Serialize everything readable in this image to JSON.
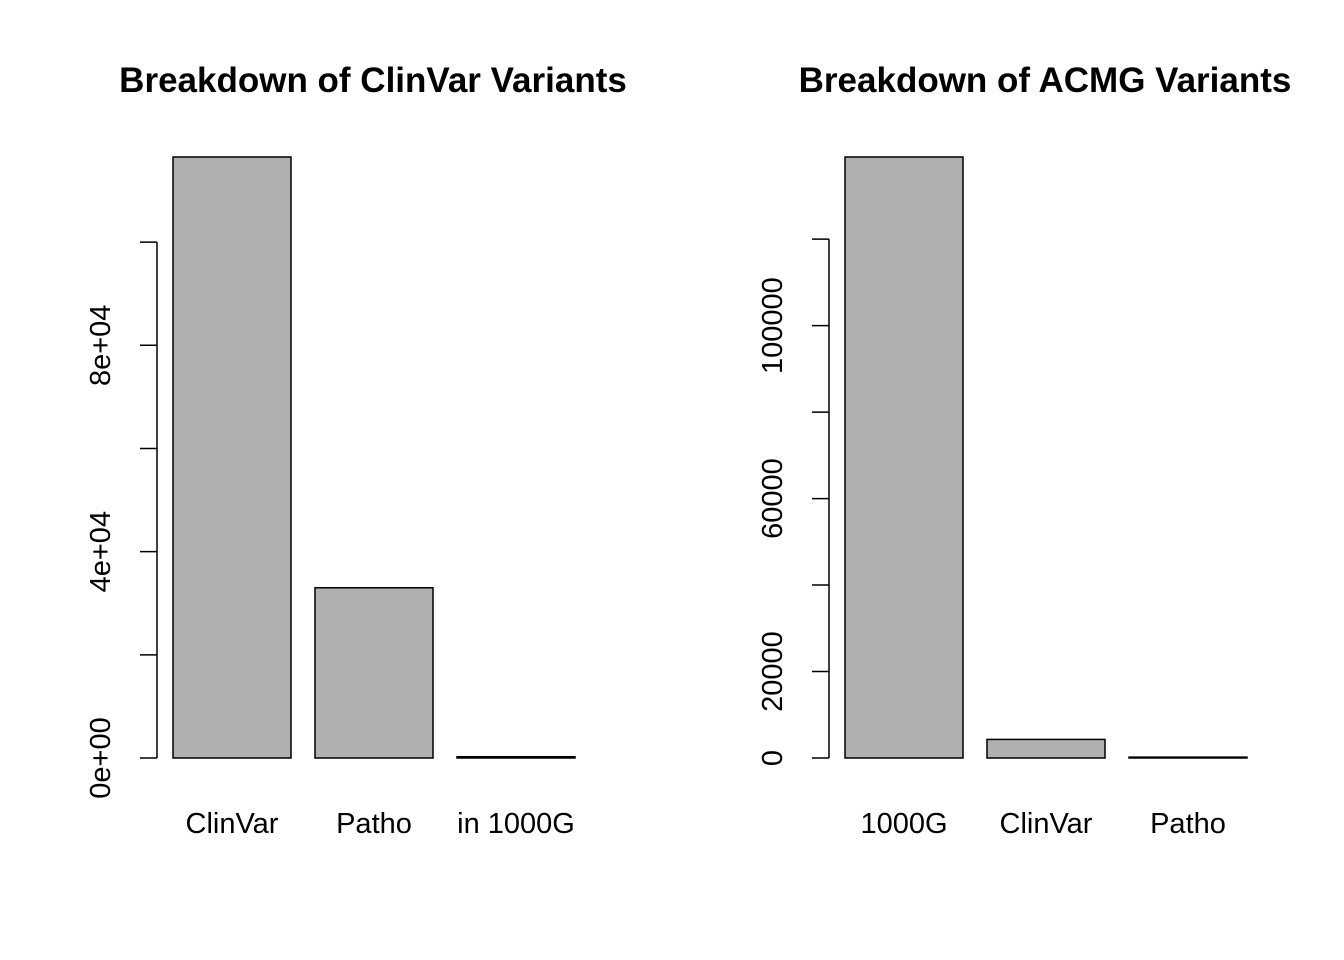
{
  "colors": {
    "bar_fill": "#b0b0b0",
    "bar_stroke": "#000000"
  },
  "chart_data": [
    {
      "type": "bar",
      "title": "Breakdown of ClinVar Variants",
      "xlabel": "",
      "ylabel": "",
      "categories": [
        "ClinVar",
        "Patho",
        "in 1000G"
      ],
      "values": [
        116500,
        33000,
        250
      ],
      "ylim": [
        0,
        116500
      ],
      "y_ticks": [
        0,
        20000,
        40000,
        60000,
        80000,
        100000
      ],
      "y_tick_labels": [
        "0e+00",
        "",
        "4e+04",
        "",
        "8e+04",
        ""
      ],
      "grid": false
    },
    {
      "type": "bar",
      "title": "Breakdown of ACMG Variants",
      "xlabel": "",
      "ylabel": "",
      "categories": [
        "1000G",
        "ClinVar",
        "Patho"
      ],
      "values": [
        139000,
        4300,
        200
      ],
      "ylim": [
        0,
        139000
      ],
      "y_ticks": [
        0,
        20000,
        40000,
        60000,
        80000,
        100000,
        120000
      ],
      "y_tick_labels": [
        "0",
        "20000",
        "",
        "60000",
        "",
        "100000",
        ""
      ],
      "grid": false
    }
  ]
}
